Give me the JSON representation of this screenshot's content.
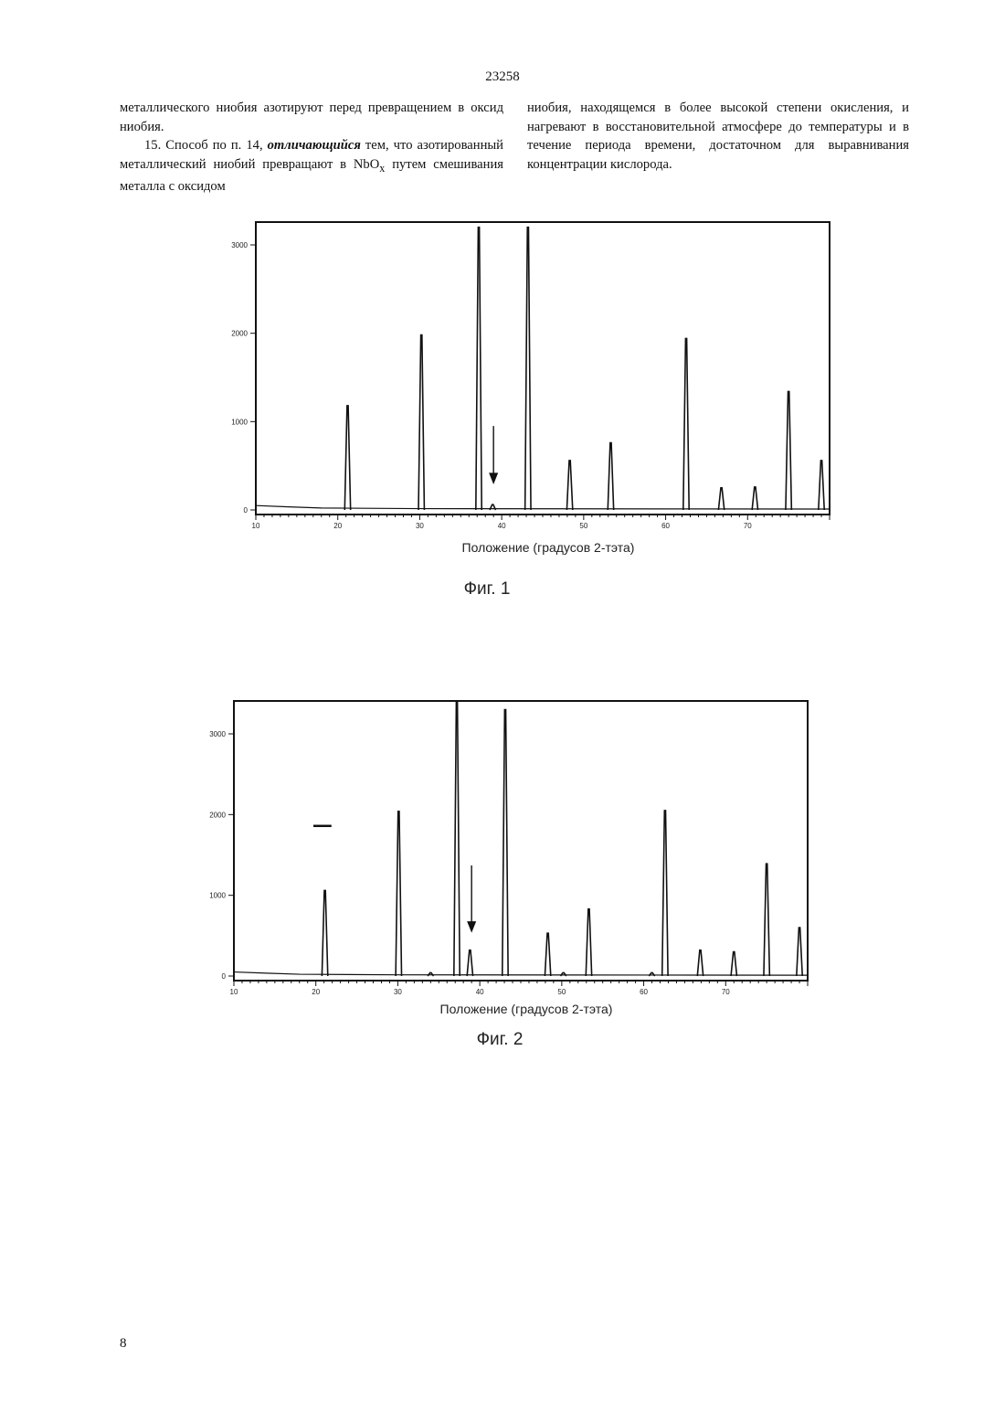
{
  "header": {
    "patent_number": "23258"
  },
  "text": {
    "left_col_p1": "металлического ниобия азотируют перед превращением в оксид ниобия.",
    "left_col_p2_start": "15. Способ по п. 14, ",
    "left_col_p2_emph": "отличающийся",
    "left_col_p2_mid": " тем, что азотированный металлический ниобий превращают в NbO",
    "left_col_p2_sub": "x",
    "left_col_p2_end": " путем смешивания металла с оксидом",
    "right_col": "ниобия, находящемся в более высокой степени окисления, и нагревают в восстановительной атмосфере до температуры и в течение периода времени, достаточном для выравнивания концентрации кислорода."
  },
  "footer": {
    "page_number": "8"
  },
  "chart_data": [
    {
      "type": "line",
      "caption": "Фиг. 1",
      "xlabel": "Положение (градусов 2-тэта)",
      "ylabel": "",
      "xlim": [
        10,
        80
      ],
      "ylim": [
        0,
        3200
      ],
      "x_ticks": [
        10,
        20,
        30,
        40,
        50,
        60,
        70
      ],
      "y_ticks": [
        0,
        1000,
        2000,
        3000
      ],
      "baseline": [
        [
          10,
          50
        ],
        [
          14,
          35
        ],
        [
          18,
          22
        ],
        [
          30,
          15
        ],
        [
          60,
          12
        ],
        [
          80,
          10
        ]
      ],
      "peaks": [
        {
          "x": 21.2,
          "y": 1180
        },
        {
          "x": 30.2,
          "y": 1980
        },
        {
          "x": 37.2,
          "y": 3200
        },
        {
          "x": 38.9,
          "y": 60
        },
        {
          "x": 43.2,
          "y": 3200
        },
        {
          "x": 48.3,
          "y": 560
        },
        {
          "x": 53.3,
          "y": 760
        },
        {
          "x": 62.5,
          "y": 1940
        },
        {
          "x": 66.8,
          "y": 250
        },
        {
          "x": 70.9,
          "y": 260
        },
        {
          "x": 75.0,
          "y": 1340
        },
        {
          "x": 79.0,
          "y": 560
        }
      ],
      "arrow": {
        "x": 39.0,
        "y_from": 950,
        "y_to": 330
      }
    },
    {
      "type": "line",
      "caption": "Фиг. 2",
      "xlabel": "Положение (градусов 2-тэта)",
      "ylabel": "",
      "xlim": [
        10,
        80
      ],
      "ylim": [
        0,
        3400
      ],
      "x_ticks": [
        10,
        20,
        30,
        40,
        50,
        60,
        70
      ],
      "y_ticks": [
        0,
        1000,
        2000,
        3000
      ],
      "baseline": [
        [
          10,
          50
        ],
        [
          14,
          35
        ],
        [
          18,
          22
        ],
        [
          30,
          15
        ],
        [
          60,
          12
        ],
        [
          80,
          10
        ]
      ],
      "peaks": [
        {
          "x": 21.1,
          "y": 1060
        },
        {
          "x": 30.1,
          "y": 2040
        },
        {
          "x": 34.0,
          "y": 40
        },
        {
          "x": 37.2,
          "y": 3400
        },
        {
          "x": 38.8,
          "y": 320
        },
        {
          "x": 43.1,
          "y": 3300
        },
        {
          "x": 48.3,
          "y": 530
        },
        {
          "x": 50.2,
          "y": 40
        },
        {
          "x": 53.3,
          "y": 830
        },
        {
          "x": 61.0,
          "y": 40
        },
        {
          "x": 62.6,
          "y": 2050
        },
        {
          "x": 66.9,
          "y": 320
        },
        {
          "x": 71.0,
          "y": 300
        },
        {
          "x": 75.0,
          "y": 1390
        },
        {
          "x": 79.0,
          "y": 600
        }
      ],
      "arrow": {
        "x": 39.0,
        "y_from": 1370,
        "y_to": 580
      }
    }
  ]
}
